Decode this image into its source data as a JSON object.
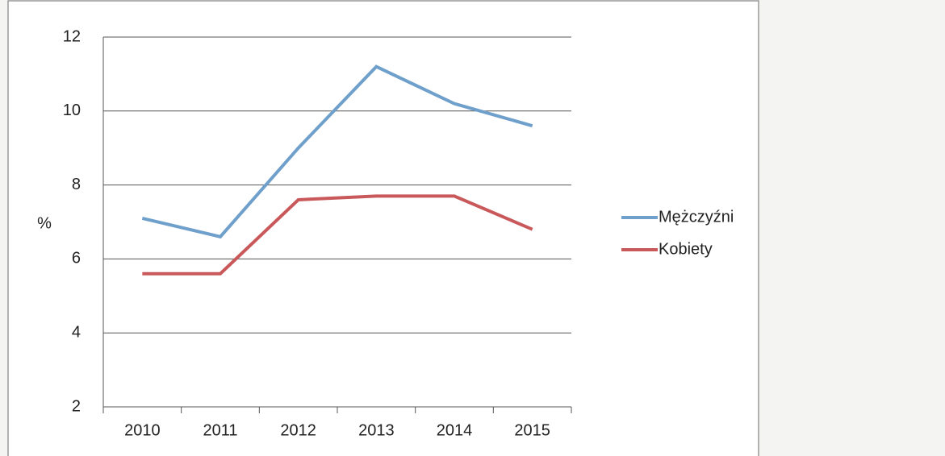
{
  "chart_data": {
    "type": "line",
    "y_label": "%",
    "categories": [
      "2010",
      "2011",
      "2012",
      "2013",
      "2014",
      "2015"
    ],
    "series": [
      {
        "name": "Mężczyźni",
        "color": "#6f9fcb",
        "values": [
          7.1,
          6.6,
          9.0,
          11.2,
          10.2,
          9.6
        ]
      },
      {
        "name": "Kobiety",
        "color": "#c9585a",
        "values": [
          5.6,
          5.6,
          7.6,
          7.7,
          7.7,
          6.8
        ]
      }
    ],
    "ylim": [
      2,
      12
    ],
    "yticks": [
      2,
      4,
      6,
      8,
      10,
      12
    ],
    "grid": true,
    "legend": "right"
  }
}
